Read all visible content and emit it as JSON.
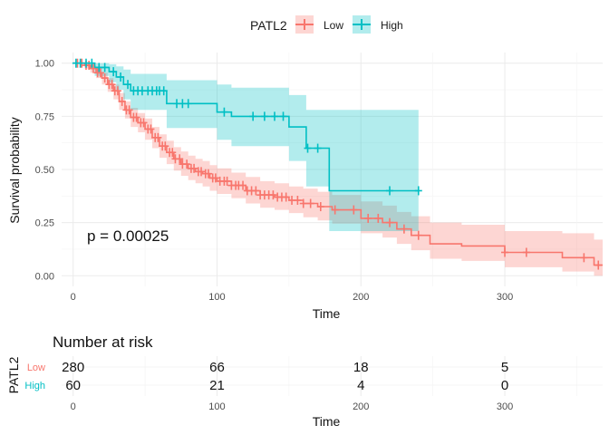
{
  "legend": {
    "title": "PATL2",
    "items": [
      {
        "label": "Low",
        "color": "#F8766D"
      },
      {
        "label": "High",
        "color": "#00BFC4"
      }
    ]
  },
  "chart_data": [
    {
      "type": "line",
      "subtype": "kaplan-meier",
      "xlabel": "Time",
      "ylabel": "Survival probability",
      "xlim": [
        -8,
        368
      ],
      "ylim": [
        -0.05,
        1.05
      ],
      "xticks": [
        0,
        100,
        200,
        300
      ],
      "yticks": [
        0.0,
        0.25,
        0.5,
        0.75,
        1.0
      ],
      "ytick_labels": [
        "0.00",
        "0.25",
        "0.50",
        "0.75",
        "1.00"
      ],
      "pvalue_text": "p = 0.00025",
      "grid": true,
      "legend_position": "top",
      "series": [
        {
          "name": "Low",
          "color": "#F8766D",
          "steps": [
            [
              0,
              1.0
            ],
            [
              8,
              0.99
            ],
            [
              12,
              0.975
            ],
            [
              16,
              0.955
            ],
            [
              20,
              0.93
            ],
            [
              24,
              0.9
            ],
            [
              28,
              0.87
            ],
            [
              32,
              0.82
            ],
            [
              36,
              0.78
            ],
            [
              40,
              0.745
            ],
            [
              45,
              0.72
            ],
            [
              50,
              0.69
            ],
            [
              55,
              0.65
            ],
            [
              60,
              0.61
            ],
            [
              65,
              0.58
            ],
            [
              70,
              0.55
            ],
            [
              75,
              0.525
            ],
            [
              80,
              0.505
            ],
            [
              85,
              0.49
            ],
            [
              90,
              0.48
            ],
            [
              95,
              0.46
            ],
            [
              100,
              0.445
            ],
            [
              110,
              0.425
            ],
            [
              120,
              0.4
            ],
            [
              130,
              0.38
            ],
            [
              140,
              0.37
            ],
            [
              150,
              0.355
            ],
            [
              160,
              0.34
            ],
            [
              170,
              0.325
            ],
            [
              180,
              0.31
            ],
            [
              200,
              0.27
            ],
            [
              215,
              0.25
            ],
            [
              225,
              0.22
            ],
            [
              235,
              0.19
            ],
            [
              248,
              0.15
            ],
            [
              270,
              0.14
            ],
            [
              300,
              0.11
            ],
            [
              340,
              0.085
            ],
            [
              362,
              0.05
            ],
            [
              368,
              0.05
            ]
          ],
          "ci_upper": [
            [
              0,
              1.0
            ],
            [
              8,
              1.0
            ],
            [
              12,
              0.99
            ],
            [
              16,
              0.975
            ],
            [
              20,
              0.955
            ],
            [
              24,
              0.93
            ],
            [
              28,
              0.9
            ],
            [
              32,
              0.86
            ],
            [
              36,
              0.82
            ],
            [
              40,
              0.79
            ],
            [
              45,
              0.765
            ],
            [
              50,
              0.74
            ],
            [
              55,
              0.7
            ],
            [
              60,
              0.665
            ],
            [
              65,
              0.635
            ],
            [
              70,
              0.605
            ],
            [
              75,
              0.585
            ],
            [
              80,
              0.565
            ],
            [
              85,
              0.55
            ],
            [
              90,
              0.54
            ],
            [
              95,
              0.52
            ],
            [
              100,
              0.505
            ],
            [
              110,
              0.485
            ],
            [
              120,
              0.465
            ],
            [
              130,
              0.445
            ],
            [
              140,
              0.435
            ],
            [
              150,
              0.42
            ],
            [
              160,
              0.41
            ],
            [
              170,
              0.395
            ],
            [
              180,
              0.38
            ],
            [
              200,
              0.35
            ],
            [
              215,
              0.33
            ],
            [
              225,
              0.3
            ],
            [
              235,
              0.28
            ],
            [
              248,
              0.25
            ],
            [
              270,
              0.24
            ],
            [
              300,
              0.21
            ],
            [
              340,
              0.2
            ],
            [
              362,
              0.17
            ],
            [
              368,
              0.17
            ]
          ],
          "ci_lower": [
            [
              0,
              1.0
            ],
            [
              8,
              0.975
            ],
            [
              12,
              0.955
            ],
            [
              16,
              0.93
            ],
            [
              20,
              0.9
            ],
            [
              24,
              0.865
            ],
            [
              28,
              0.83
            ],
            [
              32,
              0.78
            ],
            [
              36,
              0.74
            ],
            [
              40,
              0.7
            ],
            [
              45,
              0.675
            ],
            [
              50,
              0.64
            ],
            [
              55,
              0.6
            ],
            [
              60,
              0.555
            ],
            [
              65,
              0.525
            ],
            [
              70,
              0.495
            ],
            [
              75,
              0.47
            ],
            [
              80,
              0.45
            ],
            [
              85,
              0.435
            ],
            [
              90,
              0.42
            ],
            [
              95,
              0.4
            ],
            [
              100,
              0.385
            ],
            [
              110,
              0.365
            ],
            [
              120,
              0.34
            ],
            [
              130,
              0.32
            ],
            [
              140,
              0.31
            ],
            [
              150,
              0.295
            ],
            [
              160,
              0.275
            ],
            [
              170,
              0.26
            ],
            [
              180,
              0.245
            ],
            [
              200,
              0.2
            ],
            [
              215,
              0.18
            ],
            [
              225,
              0.15
            ],
            [
              235,
              0.12
            ],
            [
              248,
              0.08
            ],
            [
              270,
              0.07
            ],
            [
              300,
              0.04
            ],
            [
              340,
              0.02
            ],
            [
              362,
              0.0
            ],
            [
              368,
              0.0
            ]
          ],
          "censor_times": [
            3,
            6,
            9,
            11,
            14,
            17,
            19,
            22,
            25,
            27,
            29,
            31,
            34,
            37,
            39,
            42,
            44,
            47,
            49,
            52,
            54,
            57,
            59,
            62,
            64,
            67,
            69,
            71,
            74,
            76,
            79,
            82,
            84,
            87,
            89,
            92,
            94,
            97,
            99,
            102,
            105,
            107,
            110,
            113,
            115,
            118,
            121,
            124,
            127,
            130,
            133,
            136,
            139,
            142,
            145,
            148,
            152,
            156,
            160,
            165,
            172,
            182,
            195,
            205,
            212,
            220,
            230,
            240,
            300,
            315,
            355,
            365
          ]
        },
        {
          "name": "High",
          "color": "#00BFC4",
          "steps": [
            [
              0,
              1.0
            ],
            [
              15,
              0.98
            ],
            [
              25,
              0.96
            ],
            [
              30,
              0.935
            ],
            [
              35,
              0.9
            ],
            [
              40,
              0.87
            ],
            [
              65,
              0.81
            ],
            [
              100,
              0.77
            ],
            [
              110,
              0.75
            ],
            [
              150,
              0.7
            ],
            [
              162,
              0.6
            ],
            [
              178,
              0.4
            ],
            [
              240,
              0.4
            ]
          ],
          "ci_upper": [
            [
              0,
              1.0
            ],
            [
              15,
              1.0
            ],
            [
              25,
              0.995
            ],
            [
              30,
              0.985
            ],
            [
              35,
              0.97
            ],
            [
              40,
              0.95
            ],
            [
              65,
              0.92
            ],
            [
              100,
              0.9
            ],
            [
              110,
              0.885
            ],
            [
              150,
              0.85
            ],
            [
              162,
              0.78
            ],
            [
              178,
              0.78
            ],
            [
              240,
              0.78
            ]
          ],
          "ci_lower": [
            [
              0,
              1.0
            ],
            [
              15,
              0.94
            ],
            [
              25,
              0.91
            ],
            [
              30,
              0.875
            ],
            [
              35,
              0.83
            ],
            [
              40,
              0.78
            ],
            [
              65,
              0.695
            ],
            [
              100,
              0.64
            ],
            [
              110,
              0.61
            ],
            [
              150,
              0.54
            ],
            [
              162,
              0.42
            ],
            [
              178,
              0.21
            ],
            [
              240,
              0.21
            ]
          ],
          "censor_times": [
            2,
            5,
            9,
            13,
            18,
            22,
            28,
            33,
            38,
            42,
            45,
            48,
            52,
            55,
            58,
            60,
            63,
            72,
            76,
            80,
            105,
            125,
            133,
            140,
            146,
            163,
            170,
            220,
            240
          ]
        }
      ]
    },
    {
      "type": "table",
      "title": "Number at risk",
      "ylabel": "PATL2",
      "xlabel": "Time",
      "xticks": [
        0,
        100,
        200,
        300
      ],
      "rows": [
        {
          "label": "Low",
          "color": "#F8766D",
          "values": [
            280,
            66,
            18,
            5
          ]
        },
        {
          "label": "High",
          "color": "#00BFC4",
          "values": [
            60,
            21,
            4,
            0
          ]
        }
      ]
    }
  ]
}
